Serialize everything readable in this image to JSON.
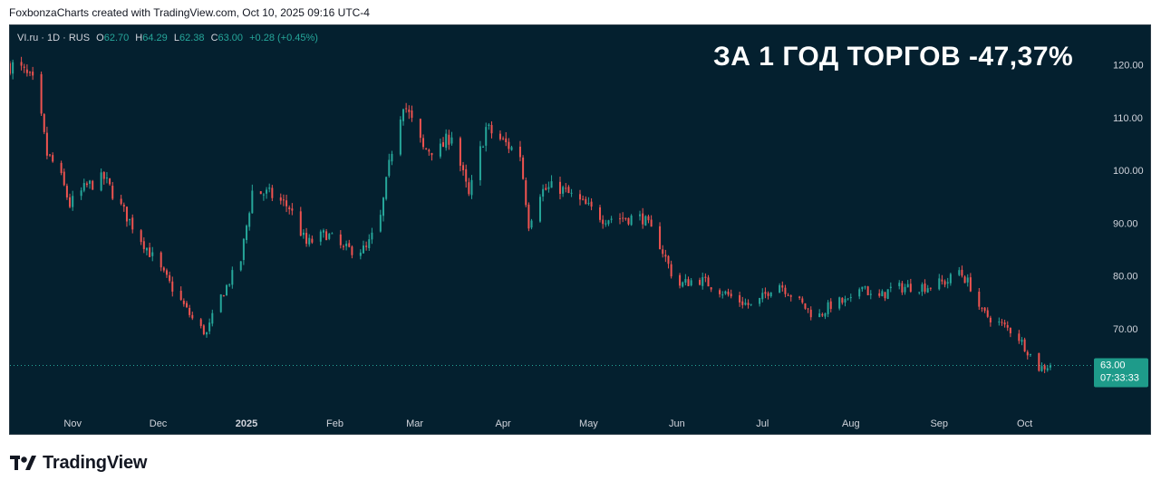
{
  "attribution": "FoxbonzaCharts created with TradingView.com, Oct 10, 2025 09:16 UTC-4",
  "legend": {
    "symbol": "VI.ru · 1D · RUS",
    "o_label": "O",
    "o_value": "62.70",
    "h_label": "H",
    "h_value": "64.29",
    "l_label": "L",
    "l_value": "62.38",
    "c_label": "C",
    "c_value": "63.00",
    "change": "+0.28 (+0.45%)"
  },
  "overlay_text": "ЗА 1 ГОД ТОРГОВ -47,37%",
  "price_badge": {
    "price": "63.00",
    "countdown": "07:33:33"
  },
  "brand": "TradingView",
  "colors": {
    "background": "#04202f",
    "up": "#26a69a",
    "down": "#ef5350",
    "axis_text": "#d1d4dc",
    "badge": "#1e9b8a"
  },
  "chart_data": {
    "type": "candlestick",
    "title": "",
    "xlabel": "",
    "ylabel": "",
    "y_ticks": [
      70,
      80,
      90,
      100,
      110,
      120
    ],
    "y_tick_labels": [
      "70.00",
      "80.00",
      "90.00",
      "100.00",
      "110.00",
      "120.00"
    ],
    "ylim": [
      54.5,
      127.5
    ],
    "x_ticks": [
      "Nov",
      "Dec",
      "2025",
      "Feb",
      "Mar",
      "Apr",
      "May",
      "Jun",
      "Jul",
      "Aug",
      "Sep",
      "Oct"
    ],
    "x_tick_positions": [
      "2024-11-01",
      "2024-12-01",
      "2025-01-01",
      "2025-02-01",
      "2025-03-01",
      "2025-04-01",
      "2025-05-01",
      "2025-06-01",
      "2025-07-01",
      "2025-08-01",
      "2025-09-01",
      "2025-10-01"
    ],
    "xlim": [
      "2024-10-10",
      "2025-11-14"
    ],
    "last_price": 63.0,
    "path_anchors": [
      [
        "2024-10-10",
        120
      ],
      [
        "2024-10-14",
        119
      ],
      [
        "2024-10-19",
        116
      ],
      [
        "2024-10-23",
        103
      ],
      [
        "2024-10-27",
        100
      ],
      [
        "2024-10-31",
        93.5
      ],
      [
        "2024-11-06",
        97
      ],
      [
        "2024-11-12",
        98.5
      ],
      [
        "2024-11-18",
        93
      ],
      [
        "2024-11-25",
        87
      ],
      [
        "2024-12-02",
        81
      ],
      [
        "2024-12-08",
        76
      ],
      [
        "2024-12-14",
        71
      ],
      [
        "2024-12-18",
        69
      ],
      [
        "2024-12-22",
        75
      ],
      [
        "2024-12-26",
        79
      ],
      [
        "2024-12-30",
        83
      ],
      [
        "2025-01-03",
        96
      ],
      [
        "2025-01-09",
        95.5
      ],
      [
        "2025-01-16",
        93
      ],
      [
        "2025-01-22",
        86
      ],
      [
        "2025-01-29",
        88
      ],
      [
        "2025-02-04",
        85
      ],
      [
        "2025-02-12",
        85
      ],
      [
        "2025-02-17",
        91
      ],
      [
        "2025-02-21",
        104
      ],
      [
        "2025-02-25",
        113
      ],
      [
        "2025-03-04",
        104
      ],
      [
        "2025-03-10",
        104
      ],
      [
        "2025-03-14",
        107
      ],
      [
        "2025-03-20",
        95
      ],
      [
        "2025-03-26",
        108
      ],
      [
        "2025-04-02",
        105
      ],
      [
        "2025-04-07",
        103
      ],
      [
        "2025-04-10",
        90
      ],
      [
        "2025-04-14",
        96
      ],
      [
        "2025-04-20",
        97
      ],
      [
        "2025-04-28",
        94
      ],
      [
        "2025-05-06",
        91
      ],
      [
        "2025-05-14",
        91
      ],
      [
        "2025-05-20",
        91
      ],
      [
        "2025-05-26",
        86
      ],
      [
        "2025-06-01",
        78
      ],
      [
        "2025-06-08",
        79.5
      ],
      [
        "2025-06-14",
        78
      ],
      [
        "2025-06-20",
        76
      ],
      [
        "2025-06-28",
        74
      ],
      [
        "2025-07-06",
        79
      ],
      [
        "2025-07-14",
        75
      ],
      [
        "2025-07-20",
        72
      ],
      [
        "2025-07-26",
        75
      ],
      [
        "2025-08-02",
        75
      ],
      [
        "2025-08-05",
        79
      ],
      [
        "2025-08-09",
        75
      ],
      [
        "2025-08-15",
        77.5
      ],
      [
        "2025-08-22",
        78
      ],
      [
        "2025-08-28",
        78
      ],
      [
        "2025-09-04",
        79
      ],
      [
        "2025-09-08",
        81
      ],
      [
        "2025-09-12",
        78
      ],
      [
        "2025-09-16",
        73
      ],
      [
        "2025-09-22",
        71
      ],
      [
        "2025-09-28",
        69
      ],
      [
        "2025-10-03",
        65
      ],
      [
        "2025-10-06",
        62.5
      ],
      [
        "2025-10-10",
        63
      ]
    ]
  }
}
